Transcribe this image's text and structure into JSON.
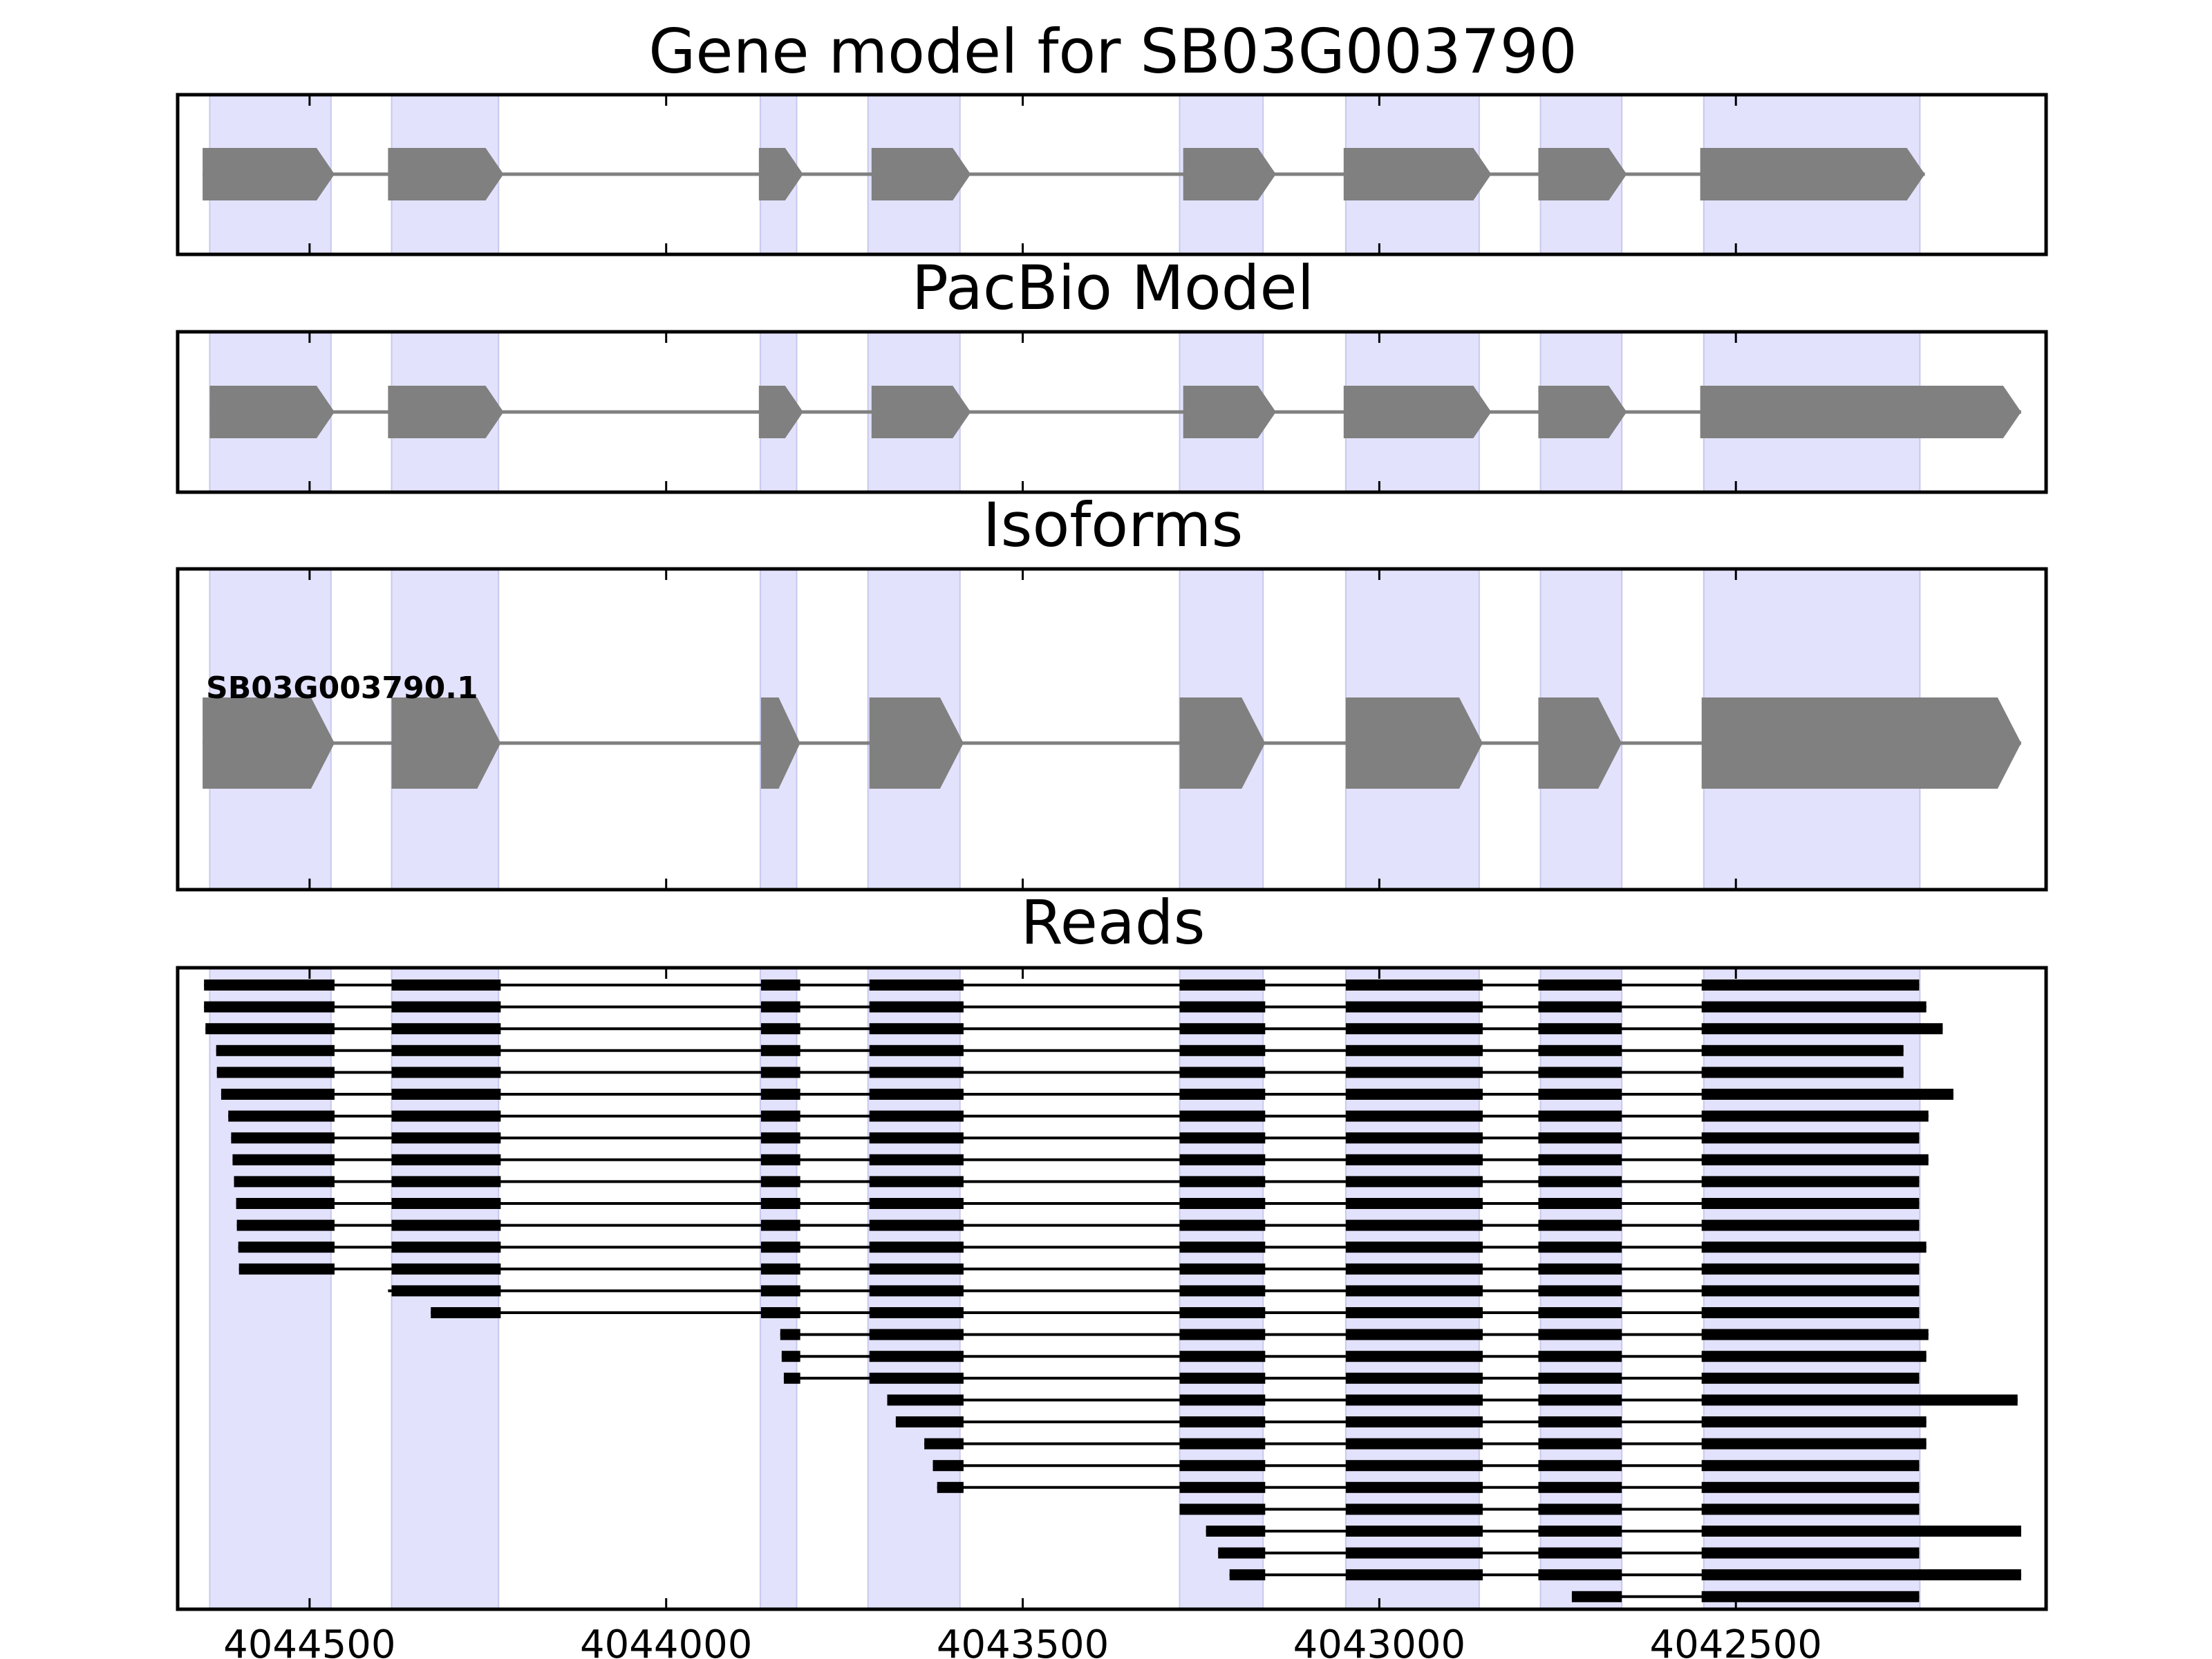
{
  "panels": {
    "gene_model": {
      "title": "Gene model for SB03G003790"
    },
    "pacbio": {
      "title": "PacBio Model"
    },
    "isoforms": {
      "title": "Isoforms",
      "isoform_label": "SB03G003790.1"
    },
    "reads": {
      "title": "Reads"
    }
  },
  "colors": {
    "exon": "#808080",
    "intron": "#808080",
    "highlight": "#e2e2fc",
    "read": "#000000"
  },
  "chart_data": {
    "type": "gene-structure",
    "axis": {
      "xlim": [
        4044685,
        4042065
      ],
      "reversed": true
    },
    "x_ticks": [
      {
        "value": 4044500,
        "label": "4044500"
      },
      {
        "value": 4044000,
        "label": "4044000"
      },
      {
        "value": 4043500,
        "label": "4043500"
      },
      {
        "value": 4043000,
        "label": "4043000"
      },
      {
        "value": 4042500,
        "label": "4042500"
      }
    ],
    "highlight_regions": [
      [
        4044640,
        4044470
      ],
      [
        4044385,
        4044235
      ],
      [
        4043868,
        4043817
      ],
      [
        4043717,
        4043588
      ],
      [
        4043280,
        4043163
      ],
      [
        4043047,
        4042860
      ],
      [
        4042774,
        4042660
      ],
      [
        4042545,
        4042242
      ]
    ],
    "gene_model_exons": [
      [
        4044650,
        4044465
      ],
      [
        4044390,
        4044228
      ],
      [
        4043870,
        4043808
      ],
      [
        4043712,
        4043573
      ],
      [
        4043275,
        4043145
      ],
      [
        4043050,
        4042843
      ],
      [
        4042777,
        4042653
      ],
      [
        4042550,
        4042235
      ]
    ],
    "pacbio_exons": [
      [
        4044640,
        4044465
      ],
      [
        4044390,
        4044228
      ],
      [
        4043870,
        4043808
      ],
      [
        4043712,
        4043573
      ],
      [
        4043275,
        4043145
      ],
      [
        4043050,
        4042843
      ],
      [
        4042777,
        4042653
      ],
      [
        4042550,
        4042100
      ]
    ],
    "isoform_exons": [
      [
        4044650,
        4044465
      ],
      [
        4044385,
        4044232
      ],
      [
        4043867,
        4043812
      ],
      [
        4043715,
        4043583
      ],
      [
        4043280,
        4043160
      ],
      [
        4043047,
        4042855
      ],
      [
        4042777,
        4042660
      ],
      [
        4042548,
        4042100
      ]
    ],
    "reads": [
      {
        "start": 4044648,
        "end": 4042243
      },
      {
        "start": 4044648,
        "end": 4042233
      },
      {
        "start": 4044646,
        "end": 4042210
      },
      {
        "start": 4044631,
        "end": 4042265
      },
      {
        "start": 4044630,
        "end": 4042265
      },
      {
        "start": 4044624,
        "end": 4042195
      },
      {
        "start": 4044614,
        "end": 4042230
      },
      {
        "start": 4044610,
        "end": 4042243
      },
      {
        "start": 4044608,
        "end": 4042230
      },
      {
        "start": 4044606,
        "end": 4042243
      },
      {
        "start": 4044603,
        "end": 4042243
      },
      {
        "start": 4044602,
        "end": 4042243
      },
      {
        "start": 4044600,
        "end": 4042233
      },
      {
        "start": 4044599,
        "end": 4042243
      },
      {
        "start": 4044390,
        "end": 4042243
      },
      {
        "start": 4044330,
        "end": 4042243
      },
      {
        "start": 4043840,
        "end": 4042230
      },
      {
        "start": 4043838,
        "end": 4042233
      },
      {
        "start": 4043835,
        "end": 4042243
      },
      {
        "start": 4043690,
        "end": 4042105
      },
      {
        "start": 4043678,
        "end": 4042233
      },
      {
        "start": 4043638,
        "end": 4042233
      },
      {
        "start": 4043626,
        "end": 4042243
      },
      {
        "start": 4043620,
        "end": 4042243
      },
      {
        "start": 4043280,
        "end": 4042243
      },
      {
        "start": 4043243,
        "end": 4042100
      },
      {
        "start": 4043226,
        "end": 4042243
      },
      {
        "start": 4043210,
        "end": 4042100
      },
      {
        "start": 4042730,
        "end": 4042243
      }
    ]
  }
}
